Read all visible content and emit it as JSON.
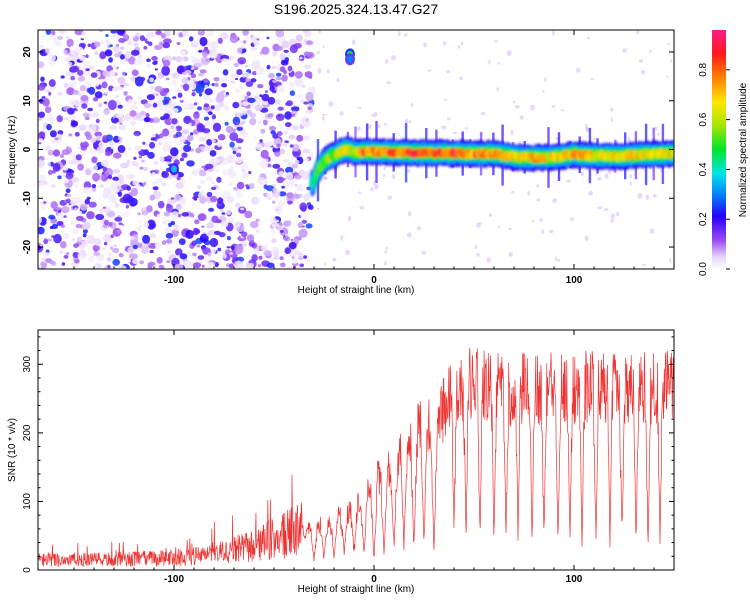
{
  "title": "S196.2025.324.13.47.G27",
  "chart_data": [
    {
      "type": "heatmap",
      "xlabel": "Height of straight line (km)",
      "ylabel": "Frequency (Hz)",
      "xlim": [
        -168,
        150
      ],
      "ylim": [
        -24.5,
        24.5
      ],
      "xticks": [
        -100,
        0,
        100
      ],
      "yticks": [
        -20,
        -10,
        0,
        10,
        20
      ],
      "colorbar": {
        "label": "Normalized spectral amplitude",
        "range": [
          0,
          0.96
        ],
        "ticks": [
          "0.0",
          "0.2",
          "0.4",
          "0.6",
          "0.8"
        ],
        "tick_values": [
          0,
          0.2,
          0.4,
          0.6,
          0.8
        ]
      },
      "noise_region": {
        "x": [
          -168,
          -31
        ],
        "y": [
          -24.5,
          24.5
        ]
      },
      "track": {
        "x": [
          -31,
          -30,
          -29,
          -27,
          -25,
          -22,
          -19,
          -17,
          -15,
          -13,
          -10,
          -5,
          0,
          20,
          40,
          60,
          70,
          80,
          90,
          100,
          110,
          120,
          130,
          140,
          150
        ],
        "y": [
          -7,
          -6.5,
          -5,
          -3.5,
          -2.5,
          -1.5,
          -1,
          -0.5,
          0,
          0,
          -0.5,
          -0.5,
          -0.5,
          -0.7,
          -0.8,
          -0.9,
          -1.5,
          -1.7,
          -1.6,
          -1.0,
          -1.3,
          -1.4,
          -1.2,
          -0.9,
          -0.9
        ],
        "amplitude": [
          0.4,
          0.45,
          0.5,
          0.5,
          0.55,
          0.6,
          0.6,
          0.65,
          0.75,
          0.7,
          0.6,
          0.85,
          0.75,
          0.9,
          0.85,
          0.8,
          0.7,
          0.75,
          0.7,
          0.75,
          0.7,
          0.7,
          0.7,
          0.65,
          0.7
        ]
      },
      "hot_spots": [
        {
          "x": -100,
          "y": -4,
          "amplitude": 0.35
        },
        {
          "x": -12,
          "y": 19.5,
          "amplitude": 0.5
        },
        {
          "x": -12,
          "y": 18.5,
          "amplitude": 0.3
        }
      ]
    },
    {
      "type": "line",
      "xlabel": "Height of straight line (km)",
      "ylabel": "SNR (10 * v/v)",
      "xlim": [
        -168,
        150
      ],
      "ylim": [
        0,
        350
      ],
      "xticks": [
        -100,
        0,
        100
      ],
      "yticks": [
        0,
        100,
        200,
        300
      ],
      "color": "#ef3333",
      "envelope": {
        "x": [
          -168,
          -140,
          -120,
          -100,
          -80,
          -60,
          -40,
          -20,
          -10,
          0,
          10,
          15,
          20,
          25,
          30,
          35,
          40,
          50,
          60,
          70,
          80,
          100,
          120,
          140,
          150
        ],
        "value": [
          15,
          15,
          16,
          18,
          22,
          35,
          55,
          80,
          100,
          140,
          175,
          205,
          220,
          230,
          235,
          260,
          300,
          298,
          290,
          285,
          290,
          292,
          290,
          290,
          295
        ]
      },
      "dips_x": [
        -30,
        -25,
        -20,
        -15,
        -10,
        -5,
        0,
        5,
        10,
        15,
        20,
        25,
        30,
        40,
        46,
        53,
        60,
        66,
        72,
        79,
        85,
        92,
        98,
        104,
        111,
        118,
        124,
        131,
        137,
        143
      ],
      "dip_depth": [
        18,
        22,
        25,
        30,
        30,
        30,
        20,
        30,
        35,
        40,
        40,
        45,
        30,
        55,
        50,
        50,
        50,
        55,
        55,
        48,
        50,
        55,
        50,
        52,
        50,
        48,
        52,
        48,
        50,
        55
      ]
    }
  ]
}
